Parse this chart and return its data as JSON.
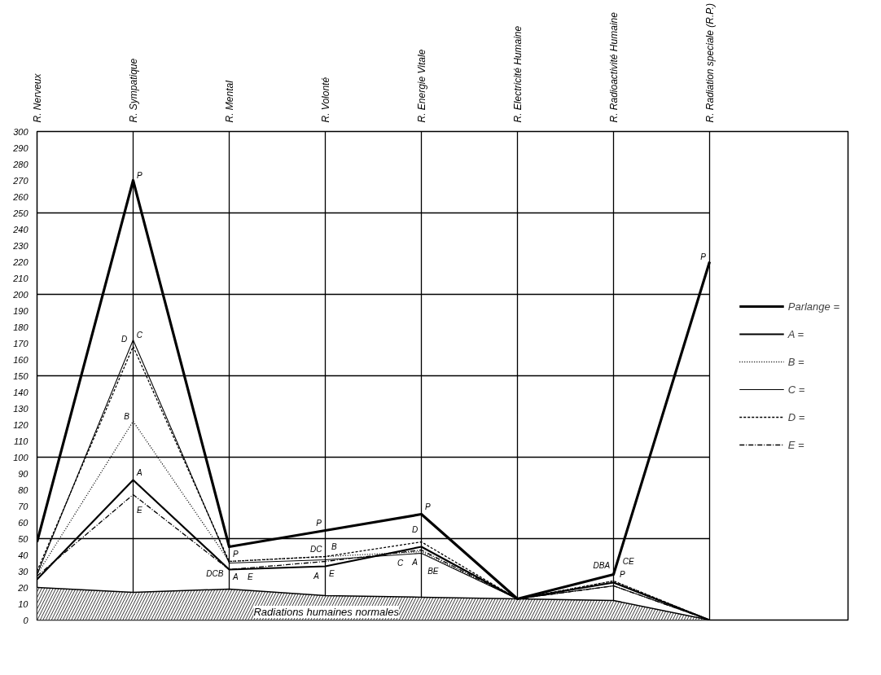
{
  "chart_data": {
    "type": "line",
    "categories": [
      "R. Nerveux",
      "R. Sympatique",
      "R. Mental",
      "R. Volonté",
      "R. Energie Vitale",
      "R. Electricité Humaine",
      "R. Radioactivité Humaine",
      "R. Radiation speciale (R.P.)"
    ],
    "ylim": [
      0,
      300
    ],
    "yticks": [
      0,
      10,
      20,
      30,
      40,
      50,
      60,
      70,
      80,
      90,
      100,
      110,
      120,
      130,
      140,
      150,
      160,
      170,
      180,
      190,
      200,
      210,
      220,
      230,
      240,
      250,
      260,
      270,
      280,
      290,
      300
    ],
    "grid": "x",
    "legend": "right",
    "ref_lines": [
      {
        "axis": "y",
        "value": 50,
        "color": "#000000"
      },
      {
        "axis": "y",
        "value": 100,
        "color": "#000000"
      },
      {
        "axis": "y",
        "value": 150,
        "color": "#000000"
      },
      {
        "axis": "y",
        "value": 200,
        "color": "#000000"
      },
      {
        "axis": "y",
        "value": 250,
        "color": "#000000"
      }
    ],
    "series": [
      {
        "name": "Radiations humaines normales",
        "type": "area",
        "color": "#000000",
        "values": [
          20,
          17,
          19,
          15,
          14,
          13,
          12,
          0
        ]
      },
      {
        "name": "Parlange =",
        "color": "#000000",
        "line_style": "solid",
        "values": [
          48,
          270,
          45,
          55,
          65,
          13,
          28,
          220
        ]
      },
      {
        "name": "A =",
        "color": "#000000",
        "line_style": "solid",
        "values": [
          25,
          86,
          31,
          33,
          45,
          13,
          23,
          0
        ]
      },
      {
        "name": "B =",
        "color": "#000000",
        "line_style": "dotted",
        "values": [
          28,
          122,
          36,
          39,
          42,
          13,
          24,
          0
        ]
      },
      {
        "name": "C =",
        "color": "#000000",
        "line_style": "solid",
        "values": [
          28,
          172,
          35,
          37,
          41,
          13,
          21,
          0
        ]
      },
      {
        "name": "D =",
        "color": "#000000",
        "line_style": "dashed",
        "values": [
          30,
          168,
          36,
          39,
          48,
          13,
          24,
          0
        ]
      },
      {
        "name": "E =",
        "color": "#000000",
        "line_style": "dashdot",
        "values": [
          27,
          77,
          31,
          36,
          43,
          13,
          21,
          0
        ]
      }
    ],
    "annotations": [
      {
        "text": "P",
        "x": "R. Sympatique",
        "y": 270
      },
      {
        "text": "C",
        "x": "R. Sympatique",
        "y": 172
      },
      {
        "text": "D",
        "x": "R. Sympatique",
        "y": 168
      },
      {
        "text": "B",
        "x": "R. Sympatique",
        "y": 122
      },
      {
        "text": "A",
        "x": "R. Sympatique",
        "y": 86
      },
      {
        "text": "E",
        "x": "R. Sympatique",
        "y": 77
      },
      {
        "text": "P",
        "x": "R. Mental",
        "y": 45
      },
      {
        "text": "DCB",
        "x": "R. Mental",
        "y": 36
      },
      {
        "text": "A",
        "x": "R. Mental",
        "y": 31
      },
      {
        "text": "E",
        "x": "R. Mental",
        "y": 31
      },
      {
        "text": "P",
        "x": "R. Volonté",
        "y": 55
      },
      {
        "text": "DC",
        "x": "R. Volonté",
        "y": 39
      },
      {
        "text": "B",
        "x": "R. Volonté",
        "y": 39
      },
      {
        "text": "E",
        "x": "R. Volonté",
        "y": 36
      },
      {
        "text": "A",
        "x": "R. Volonté",
        "y": 33
      },
      {
        "text": "P",
        "x": "R. Energie Vitale",
        "y": 65
      },
      {
        "text": "D",
        "x": "R. Energie Vitale",
        "y": 48
      },
      {
        "text": "A",
        "x": "R. Energie Vitale",
        "y": 45
      },
      {
        "text": "BE",
        "x": "R. Energie Vitale",
        "y": 42
      },
      {
        "text": "C",
        "x": "R. Energie Vitale",
        "y": 41
      },
      {
        "text": "P",
        "x": "R. Radioactivité Humaine",
        "y": 28
      },
      {
        "text": "DBA",
        "x": "R. Radioactivité Humaine",
        "y": 24
      },
      {
        "text": "CE",
        "x": "R. Radioactivité Humaine",
        "y": 21
      },
      {
        "text": "P",
        "x": "R. Radiation speciale (R.P.)",
        "y": 220
      }
    ]
  }
}
